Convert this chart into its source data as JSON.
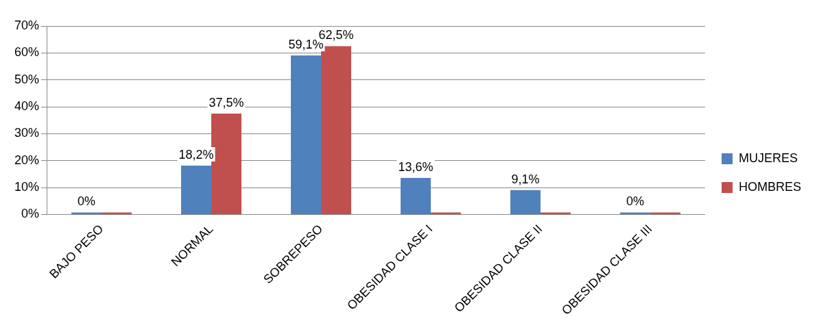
{
  "chart_data": {
    "type": "bar",
    "categories": [
      "BAJO PESO",
      "NORMAL",
      "SOBREPESO",
      "OBESIDAD CLASE I",
      "OBESIDAD CLASE II",
      "OBESIDAD CLASE III"
    ],
    "series": [
      {
        "name": "MUJERES",
        "color": "#4f81bd",
        "values": [
          0,
          18.2,
          59.1,
          13.6,
          9.1,
          0
        ],
        "value_labels": [
          "0%",
          "18,2%",
          "59,1%",
          "13,6%",
          "9,1%",
          "0%"
        ]
      },
      {
        "name": "HOMBRES",
        "color": "#c0504d",
        "values": [
          0,
          37.5,
          62.5,
          0,
          0,
          0
        ],
        "value_labels": [
          null,
          "37,5%",
          "62,5%",
          null,
          null,
          null
        ]
      }
    ],
    "ylim": [
      0,
      70
    ],
    "yticks": [
      {
        "value": 0,
        "label": "0%"
      },
      {
        "value": 10,
        "label": "10%"
      },
      {
        "value": 20,
        "label": "20%"
      },
      {
        "value": 30,
        "label": "30%"
      },
      {
        "value": 40,
        "label": "40%"
      },
      {
        "value": 50,
        "label": "50%"
      },
      {
        "value": 60,
        "label": "60%"
      },
      {
        "value": 70,
        "label": "70%"
      }
    ],
    "grid": "y",
    "legend": "right"
  }
}
